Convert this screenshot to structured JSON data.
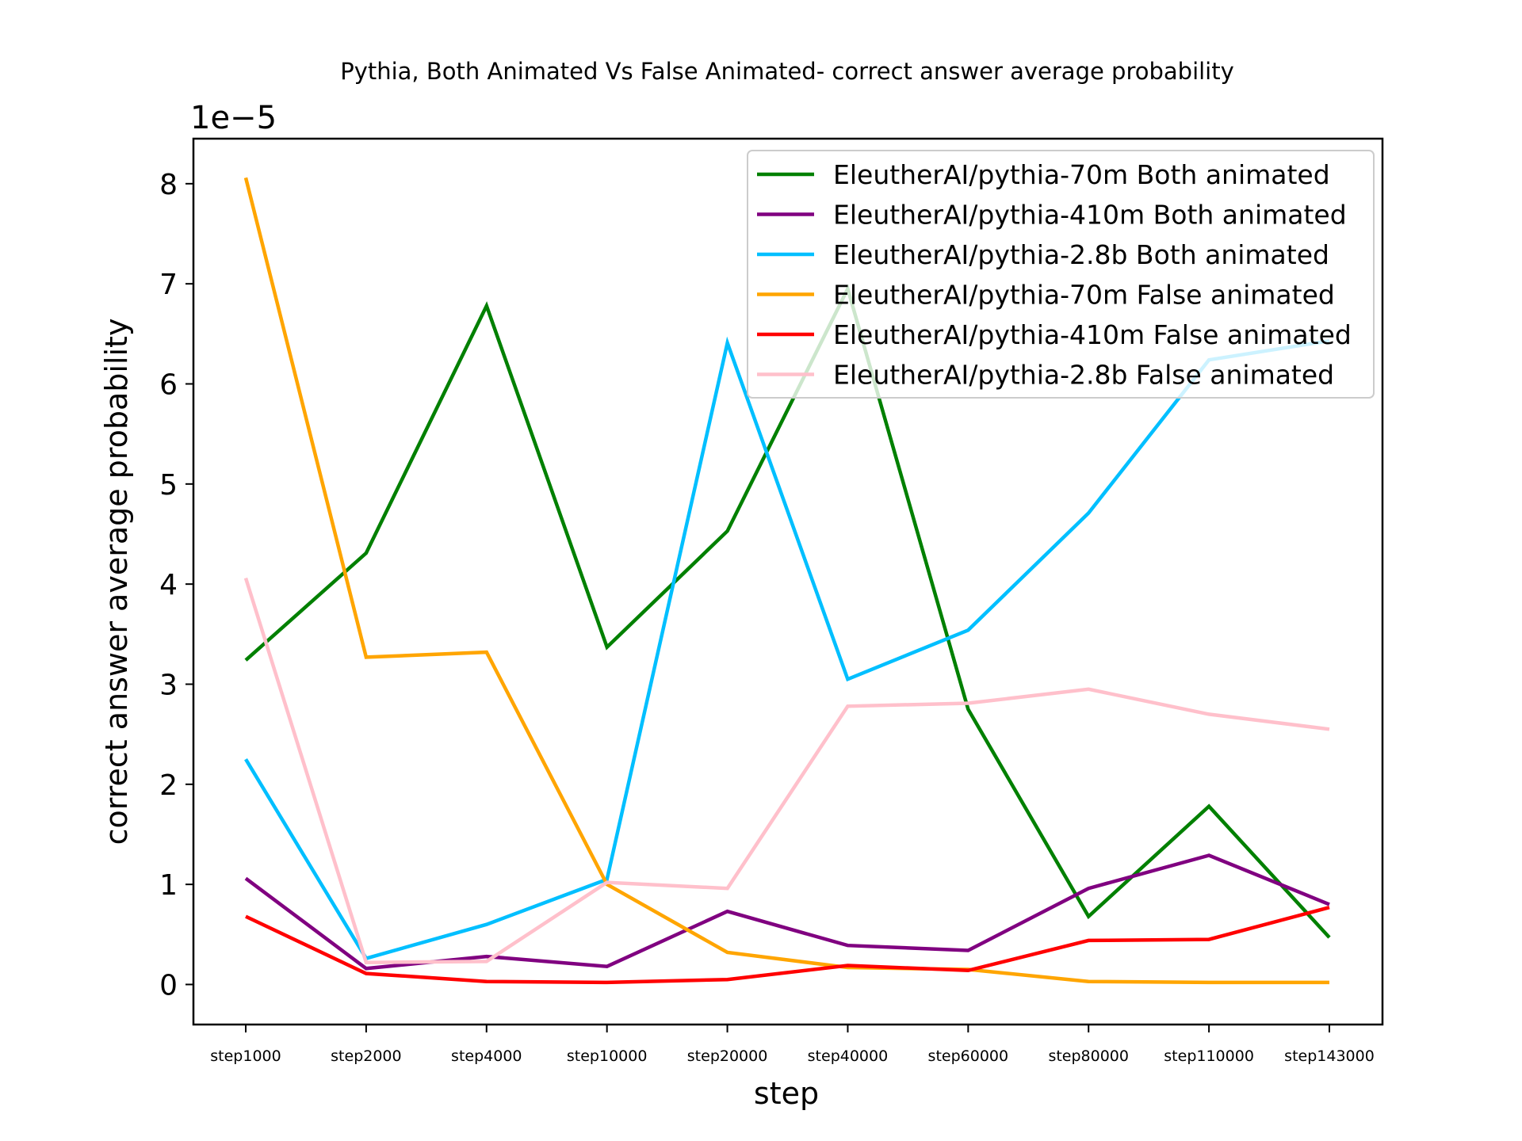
{
  "chart_data": {
    "type": "line",
    "title": "Pythia, Both Animated Vs False Animated- correct answer average probability",
    "xlabel": "step",
    "ylabel": "correct answer average probability",
    "y_offset_label": "1e−5",
    "y_scale_multiplier": 1e-05,
    "categories": [
      "step1000",
      "step2000",
      "step4000",
      "step10000",
      "step20000",
      "step40000",
      "step60000",
      "step80000",
      "step110000",
      "step143000"
    ],
    "yticks": [
      0,
      1,
      2,
      3,
      4,
      5,
      6,
      7,
      8
    ],
    "ylim": [
      -0.4,
      8.45
    ],
    "grid": false,
    "legend_position": "upper right",
    "series": [
      {
        "name": "EleutherAI/pythia-70m Both animated",
        "color": "#008000",
        "values": [
          3.24,
          4.31,
          6.78,
          3.37,
          4.53,
          6.95,
          2.75,
          0.68,
          1.78,
          0.47
        ]
      },
      {
        "name": "EleutherAI/pythia-410m Both animated",
        "color": "#800080",
        "values": [
          1.06,
          0.16,
          0.28,
          0.18,
          0.73,
          0.39,
          0.34,
          0.96,
          1.29,
          0.8
        ]
      },
      {
        "name": "EleutherAI/pythia-2.8b Both animated",
        "color": "#00bfff",
        "values": [
          2.25,
          0.26,
          0.6,
          1.05,
          6.41,
          3.05,
          3.54,
          4.71,
          6.24,
          6.43
        ]
      },
      {
        "name": "EleutherAI/pythia-70m False animated",
        "color": "#ffa500",
        "values": [
          8.06,
          3.27,
          3.32,
          1.0,
          0.32,
          0.17,
          0.15,
          0.03,
          0.02,
          0.02
        ]
      },
      {
        "name": "EleutherAI/pythia-410m False animated",
        "color": "#ff0000",
        "values": [
          0.68,
          0.11,
          0.03,
          0.02,
          0.05,
          0.19,
          0.14,
          0.44,
          0.45,
          0.77
        ]
      },
      {
        "name": "EleutherAI/pythia-2.8b False animated",
        "color": "#ffc0cb",
        "values": [
          4.06,
          0.22,
          0.23,
          1.02,
          0.96,
          2.78,
          2.81,
          2.95,
          2.7,
          2.55
        ]
      }
    ]
  }
}
